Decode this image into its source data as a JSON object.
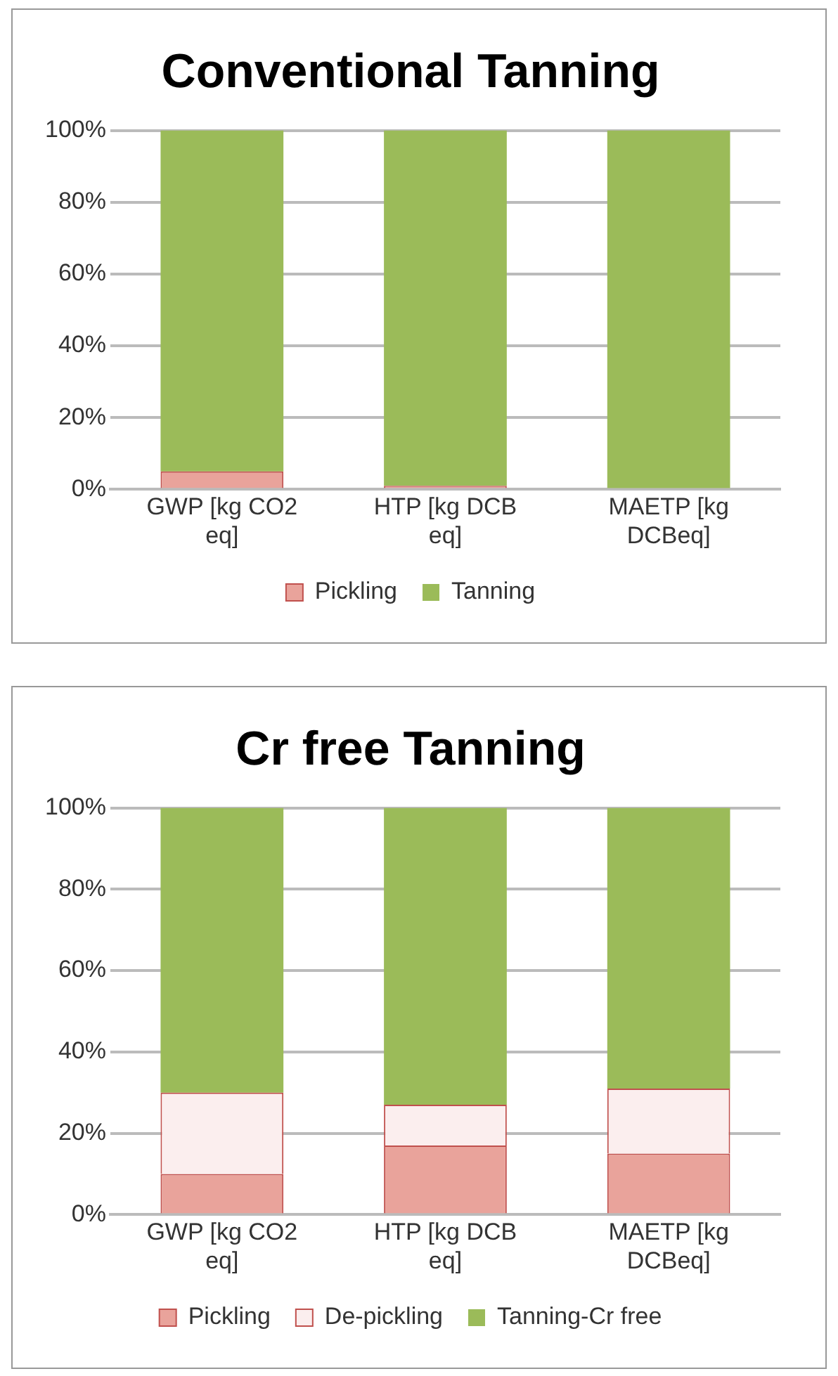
{
  "chart_data": [
    {
      "type": "bar",
      "title": "Conventional Tanning",
      "categories": [
        "GWP [kg CO2 eq]",
        "HTP [kg DCB eq]",
        "MAETP [kg DCBeq]"
      ],
      "stacked": true,
      "ylim": [
        0,
        100
      ],
      "yticks": [
        {
          "value": 0,
          "label": "0%"
        },
        {
          "value": 20,
          "label": "20%"
        },
        {
          "value": 40,
          "label": "40%"
        },
        {
          "value": 60,
          "label": "60%"
        },
        {
          "value": 80,
          "label": "80%"
        },
        {
          "value": 100,
          "label": "100%"
        }
      ],
      "grid": "y",
      "legend": "bottom",
      "series": [
        {
          "name": "Pickling",
          "color": "#e9a39b",
          "values": [
            5,
            1,
            0
          ]
        },
        {
          "name": "Tanning",
          "color": "#9bbb59",
          "values": [
            95,
            99,
            100
          ]
        }
      ]
    },
    {
      "type": "bar",
      "title": "Cr free Tanning",
      "categories": [
        "GWP [kg CO2 eq]",
        "HTP [kg DCB eq]",
        "MAETP [kg DCBeq]"
      ],
      "stacked": true,
      "ylim": [
        0,
        100
      ],
      "yticks": [
        {
          "value": 0,
          "label": "0%"
        },
        {
          "value": 20,
          "label": "20%"
        },
        {
          "value": 40,
          "label": "40%"
        },
        {
          "value": 60,
          "label": "60%"
        },
        {
          "value": 80,
          "label": "80%"
        },
        {
          "value": 100,
          "label": "100%"
        }
      ],
      "grid": "y",
      "legend": "bottom",
      "series": [
        {
          "name": "Pickling",
          "color": "#e9a39b",
          "values": [
            10,
            17,
            15
          ]
        },
        {
          "name": "De-pickling",
          "color": "#fbeeee",
          "values": [
            20,
            10,
            16
          ]
        },
        {
          "name": "Tanning-Cr free",
          "color": "#9bbb59",
          "values": [
            70,
            73,
            69
          ]
        }
      ]
    }
  ]
}
